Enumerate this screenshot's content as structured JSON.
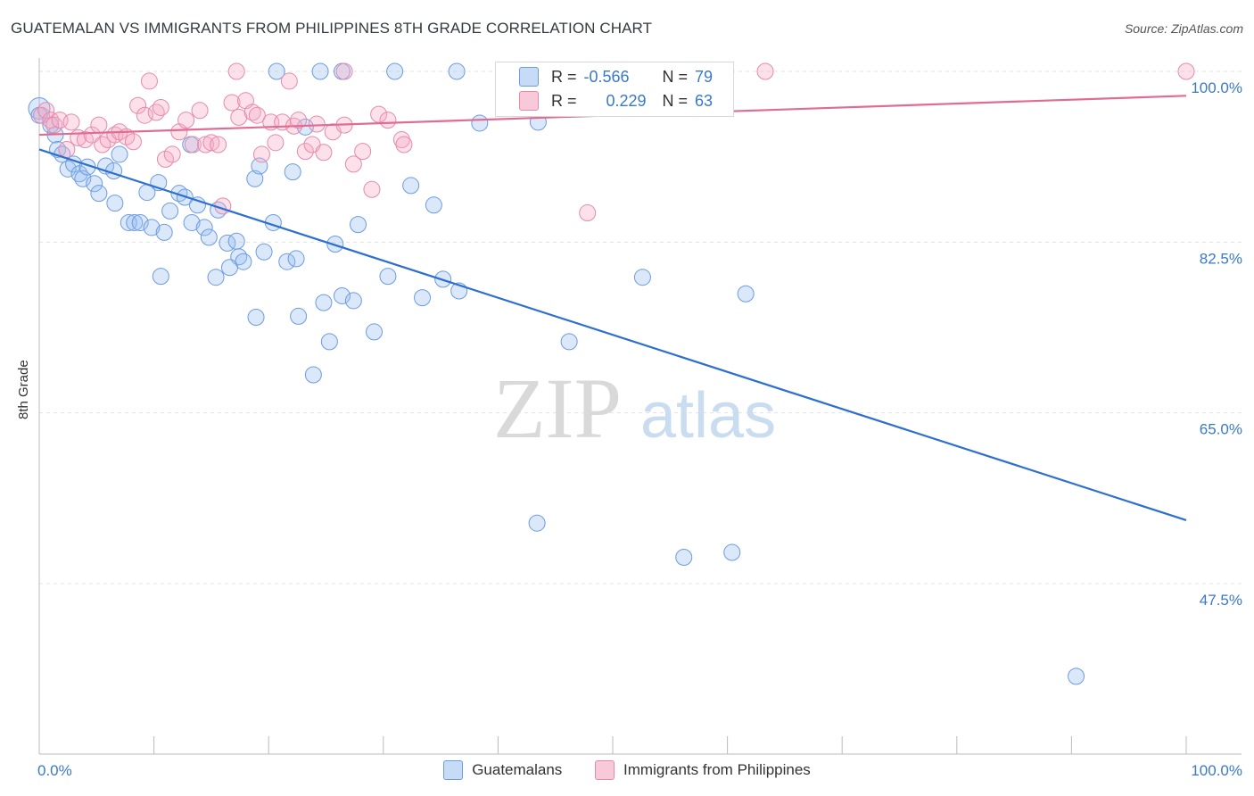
{
  "header": {
    "title": "GUATEMALAN VS IMMIGRANTS FROM PHILIPPINES 8TH GRADE CORRELATION CHART",
    "source": "Source: ZipAtlas.com"
  },
  "watermark": {
    "zip": "ZIP",
    "atlas": "atlas"
  },
  "legend_box": {
    "rows": [
      {
        "r_label": "R =",
        "r_value": "-0.566",
        "n_label": "N =",
        "n_value": "79"
      },
      {
        "r_label": "R =",
        "r_value": "0.229",
        "n_label": "N =",
        "n_value": "63"
      }
    ]
  },
  "chart_data": {
    "type": "scatter",
    "title": "GUATEMALAN VS IMMIGRANTS FROM PHILIPPINES 8TH GRADE CORRELATION CHART",
    "ylabel": "8th Grade",
    "xlabel": "",
    "xlim": [
      0,
      100
    ],
    "ylim": [
      32,
      101
    ],
    "x_tick_labels": [
      "0.0%",
      "100.0%"
    ],
    "y_ticks": [
      47.5,
      65.0,
      82.5,
      100.0
    ],
    "y_tick_labels": [
      "47.5%",
      "65.0%",
      "82.5%",
      "100.0%"
    ],
    "grid": true,
    "legend_position": "bottom",
    "colors": {
      "Guatemalans": "#5b8fd6",
      "Immigrants from Philippines": "#e67ba0",
      "blue_line": "#2c6fcf",
      "pink_line": "#e06c94",
      "tick_label": "#3a78c8"
    },
    "series": [
      {
        "name": "Guatemalans",
        "trend": {
          "x": [
            0,
            100
          ],
          "y": [
            92.0,
            54.0
          ]
        },
        "points": [
          [
            0,
            96.2
          ],
          [
            0,
            95.5
          ],
          [
            1,
            94.5
          ],
          [
            1.4,
            93.5
          ],
          [
            1.6,
            92.0
          ],
          [
            2,
            91.5
          ],
          [
            2.5,
            90.0
          ],
          [
            3,
            90.5
          ],
          [
            3.5,
            89.5
          ],
          [
            3.8,
            89.0
          ],
          [
            4.2,
            90.2
          ],
          [
            4.8,
            88.5
          ],
          [
            5.2,
            87.5
          ],
          [
            5.8,
            90.3
          ],
          [
            6.5,
            89.8
          ],
          [
            7,
            91.5
          ],
          [
            6.6,
            86.5
          ],
          [
            7.8,
            84.5
          ],
          [
            8.3,
            84.5
          ],
          [
            8.8,
            84.5
          ],
          [
            9.8,
            84.0
          ],
          [
            10.4,
            88.6
          ],
          [
            9.4,
            87.6
          ],
          [
            10.9,
            83.5
          ],
          [
            11.4,
            85.7
          ],
          [
            12.2,
            87.5
          ],
          [
            12.7,
            87.1
          ],
          [
            13.2,
            92.5
          ],
          [
            13.3,
            84.5
          ],
          [
            13.8,
            86.3
          ],
          [
            14.4,
            84.0
          ],
          [
            14.8,
            83.0
          ],
          [
            15.6,
            85.8
          ],
          [
            16.4,
            82.4
          ],
          [
            17.2,
            82.6
          ],
          [
            17.4,
            81.0
          ],
          [
            17.8,
            80.5
          ],
          [
            16.6,
            79.9
          ],
          [
            15.4,
            78.9
          ],
          [
            10.6,
            79.0
          ],
          [
            18.8,
            89.0
          ],
          [
            19.2,
            90.3
          ],
          [
            18.9,
            74.8
          ],
          [
            19.6,
            81.5
          ],
          [
            20.4,
            84.5
          ],
          [
            21.6,
            80.5
          ],
          [
            22.4,
            80.8
          ],
          [
            22.1,
            89.7
          ],
          [
            22.6,
            74.9
          ],
          [
            23.2,
            94.3
          ],
          [
            23.9,
            68.9
          ],
          [
            24.8,
            76.3
          ],
          [
            25.3,
            72.3
          ],
          [
            25.8,
            82.3
          ],
          [
            26.4,
            77.0
          ],
          [
            27.4,
            76.5
          ],
          [
            27.8,
            84.3
          ],
          [
            29.2,
            73.3
          ],
          [
            30.4,
            79.0
          ],
          [
            32.4,
            88.3
          ],
          [
            33.4,
            76.8
          ],
          [
            34.4,
            86.3
          ],
          [
            35.2,
            78.7
          ],
          [
            36.6,
            77.5
          ],
          [
            24.5,
            100
          ],
          [
            26.4,
            100
          ],
          [
            31,
            100
          ],
          [
            20.7,
            100
          ],
          [
            36.4,
            100
          ],
          [
            38.4,
            94.7
          ],
          [
            43.5,
            94.8
          ],
          [
            43.4,
            53.7
          ],
          [
            46.2,
            72.3
          ],
          [
            52.6,
            78.9
          ],
          [
            56.2,
            50.2
          ],
          [
            61.6,
            77.2
          ],
          [
            57.4,
            100
          ],
          [
            60.4,
            50.7
          ],
          [
            90.4,
            38.0
          ]
        ]
      },
      {
        "name": "Immigrants from Philippines",
        "trend": {
          "x": [
            0,
            100
          ],
          "y": [
            93.5,
            97.5
          ]
        },
        "points": [
          [
            0.2,
            95.5
          ],
          [
            0.6,
            96.0
          ],
          [
            1.0,
            95.0
          ],
          [
            1.3,
            94.5
          ],
          [
            1.8,
            95.0
          ],
          [
            2.4,
            92.0
          ],
          [
            2.8,
            94.8
          ],
          [
            3.4,
            93.2
          ],
          [
            4.0,
            93.0
          ],
          [
            4.6,
            93.5
          ],
          [
            5.2,
            94.5
          ],
          [
            5.5,
            92.5
          ],
          [
            6.0,
            93.0
          ],
          [
            6.6,
            93.5
          ],
          [
            7.0,
            93.8
          ],
          [
            7.6,
            93.3
          ],
          [
            8.2,
            92.8
          ],
          [
            8.6,
            96.5
          ],
          [
            9.2,
            95.5
          ],
          [
            9.6,
            99.0
          ],
          [
            10.2,
            95.8
          ],
          [
            10.6,
            96.3
          ],
          [
            11.0,
            91.0
          ],
          [
            11.6,
            91.5
          ],
          [
            12.2,
            93.8
          ],
          [
            12.8,
            95.0
          ],
          [
            13.4,
            92.5
          ],
          [
            14.0,
            96.0
          ],
          [
            14.5,
            92.5
          ],
          [
            15.0,
            92.7
          ],
          [
            15.6,
            92.5
          ],
          [
            16.0,
            86.2
          ],
          [
            16.8,
            96.8
          ],
          [
            17.4,
            95.3
          ],
          [
            18.0,
            97.0
          ],
          [
            18.6,
            95.8
          ],
          [
            19.0,
            95.5
          ],
          [
            19.4,
            91.5
          ],
          [
            20.2,
            94.8
          ],
          [
            20.6,
            92.7
          ],
          [
            21.2,
            94.8
          ],
          [
            21.8,
            99.0
          ],
          [
            22.2,
            94.4
          ],
          [
            22.6,
            95.0
          ],
          [
            23.2,
            91.8
          ],
          [
            23.8,
            92.5
          ],
          [
            24.2,
            94.6
          ],
          [
            24.8,
            91.7
          ],
          [
            25.6,
            93.8
          ],
          [
            26.6,
            94.5
          ],
          [
            27.4,
            90.5
          ],
          [
            28.2,
            91.8
          ],
          [
            29.0,
            87.9
          ],
          [
            29.6,
            95.6
          ],
          [
            30.4,
            95.0
          ],
          [
            31.6,
            93.0
          ],
          [
            31.8,
            92.5
          ],
          [
            17.2,
            100
          ],
          [
            26.6,
            100
          ],
          [
            59.8,
            100
          ],
          [
            63.3,
            100
          ],
          [
            47.8,
            85.5
          ],
          [
            100,
            100
          ]
        ]
      }
    ]
  },
  "bottom_legend": {
    "items": [
      "Guatemalans",
      "Immigrants from Philippines"
    ]
  }
}
